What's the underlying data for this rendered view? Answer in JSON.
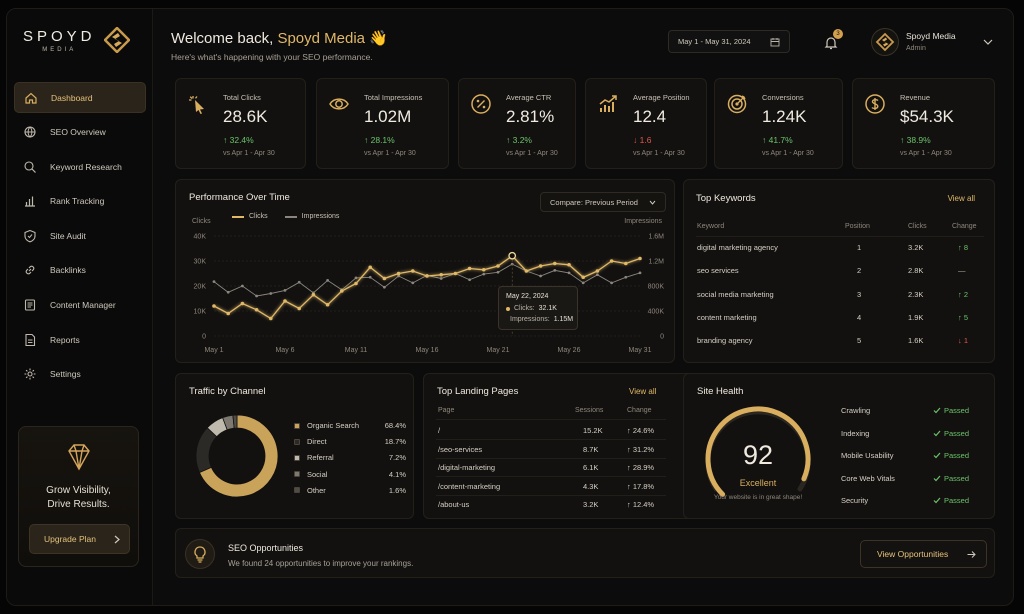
{
  "brand": {
    "name": "SPOYD",
    "sub": "MEDIA"
  },
  "nav": [
    {
      "label": "Dashboard",
      "icon": "home-icon",
      "active": true
    },
    {
      "label": "SEO Overview",
      "icon": "globe-icon"
    },
    {
      "label": "Keyword Research",
      "icon": "search-icon"
    },
    {
      "label": "Rank Tracking",
      "icon": "bar-chart-icon"
    },
    {
      "label": "Site Audit",
      "icon": "shield-icon"
    },
    {
      "label": "Backlinks",
      "icon": "link-icon"
    },
    {
      "label": "Content Manager",
      "icon": "document-icon"
    },
    {
      "label": "Reports",
      "icon": "report-icon"
    },
    {
      "label": "Settings",
      "icon": "gear-icon"
    }
  ],
  "promo": {
    "line1": "Grow Visibility,",
    "line2": "Drive Results.",
    "button": "Upgrade Plan"
  },
  "header": {
    "welcome": "Welcome back,",
    "brand_name": "Spoyd Media",
    "wave": "👋",
    "subtitle": "Here's what's happening with your SEO performance.",
    "date_range": "May 1 - May 31, 2024",
    "notifications": "3",
    "user_name": "Spoyd Media",
    "user_role": "Admin"
  },
  "kpis": [
    {
      "label": "Total Clicks",
      "value": "28.6K",
      "delta": "↑ 32.4%",
      "dir": "up",
      "vs": "vs Apr 1 - Apr 30",
      "icon": "cursor-click-icon"
    },
    {
      "label": "Total Impressions",
      "value": "1.02M",
      "delta": "↑ 28.1%",
      "dir": "up",
      "vs": "vs Apr 1 - Apr 30",
      "icon": "eye-icon"
    },
    {
      "label": "Average CTR",
      "value": "2.81%",
      "delta": "↑ 3.2%",
      "dir": "up",
      "vs": "vs Apr 1 - Apr 30",
      "icon": "percent-icon"
    },
    {
      "label": "Average Position",
      "value": "12.4",
      "delta": "↓ 1.6",
      "dir": "down",
      "vs": "vs Apr 1 - Apr 30",
      "icon": "trend-bars-icon"
    },
    {
      "label": "Conversions",
      "value": "1.24K",
      "delta": "↑ 41.7%",
      "dir": "up",
      "vs": "vs Apr 1 - Apr 30",
      "icon": "target-icon"
    },
    {
      "label": "Revenue",
      "value": "$54.3K",
      "delta": "↑ 38.9%",
      "dir": "up",
      "vs": "vs Apr 1 - Apr 30",
      "icon": "dollar-icon"
    }
  ],
  "performance": {
    "title": "Performance Over Time",
    "compare": "Compare: Previous Period",
    "left_axis": "Clicks",
    "right_axis": "Impressions",
    "tooltip": {
      "date": "May 22, 2024",
      "clicks_label": "Clicks:",
      "clicks_value": "32.1K",
      "impr_label": "Impressions:",
      "impr_value": "1.15M"
    }
  },
  "chart_data": {
    "type": "line",
    "x": [
      "May 1",
      "May 2",
      "May 3",
      "May 4",
      "May 5",
      "May 6",
      "May 7",
      "May 8",
      "May 9",
      "May 10",
      "May 11",
      "May 12",
      "May 13",
      "May 14",
      "May 15",
      "May 16",
      "May 17",
      "May 18",
      "May 19",
      "May 20",
      "May 21",
      "May 22",
      "May 23",
      "May 24",
      "May 25",
      "May 26",
      "May 27",
      "May 28",
      "May 29",
      "May 30",
      "May 31"
    ],
    "xticks": [
      "May 1",
      "May 6",
      "May 11",
      "May 16",
      "May 21",
      "May 26",
      "May 31"
    ],
    "yticks_left": [
      "0",
      "10K",
      "20K",
      "30K",
      "40K"
    ],
    "yticks_right": [
      "0",
      "400K",
      "800K",
      "1.2M",
      "1.6M"
    ],
    "ylim_left": [
      0,
      40000
    ],
    "ylim_right": [
      0,
      1600000
    ],
    "series": [
      {
        "name": "Clicks",
        "axis": "left",
        "color": "#e0b866",
        "values": [
          12000,
          9000,
          13000,
          10500,
          7000,
          14000,
          11000,
          16500,
          12500,
          18000,
          21000,
          27500,
          23000,
          25000,
          26000,
          24000,
          24500,
          25000,
          27000,
          26500,
          28000,
          32100,
          26000,
          28000,
          29000,
          28500,
          23500,
          26000,
          30000,
          29000,
          31000
        ]
      },
      {
        "name": "Impressions",
        "axis": "right",
        "color": "#8a857d",
        "values": [
          870000,
          700000,
          800000,
          640000,
          680000,
          730000,
          860000,
          690000,
          890000,
          740000,
          930000,
          940000,
          780000,
          960000,
          850000,
          970000,
          920000,
          1000000,
          900000,
          990000,
          1020000,
          1150000,
          1040000,
          960000,
          1050000,
          1010000,
          850000,
          980000,
          850000,
          940000,
          1010000
        ]
      }
    ],
    "grid": true,
    "legend": "top-left"
  },
  "keywords": {
    "title": "Top Keywords",
    "view_all": "View all",
    "headers": [
      "Keyword",
      "Position",
      "Clicks",
      "Change"
    ],
    "rows": [
      {
        "k": "digital marketing agency",
        "p": "1",
        "c": "3.2K",
        "ch": "↑ 8",
        "dir": "up"
      },
      {
        "k": "seo services",
        "p": "2",
        "c": "2.8K",
        "ch": "—",
        "dir": "flat"
      },
      {
        "k": "social media marketing",
        "p": "3",
        "c": "2.3K",
        "ch": "↑ 2",
        "dir": "up"
      },
      {
        "k": "content marketing",
        "p": "4",
        "c": "1.9K",
        "ch": "↑ 5",
        "dir": "up"
      },
      {
        "k": "branding agency",
        "p": "5",
        "c": "1.6K",
        "ch": "↓ 1",
        "dir": "down"
      }
    ]
  },
  "channels": {
    "title": "Traffic by Channel",
    "items": [
      {
        "name": "Organic Search",
        "pct": "68.4%",
        "value": 68.4,
        "color": "#c9a35a"
      },
      {
        "name": "Direct",
        "pct": "18.7%",
        "value": 18.7,
        "color": "#2c2a27"
      },
      {
        "name": "Referral",
        "pct": "7.2%",
        "value": 7.2,
        "color": "#bfb9ae"
      },
      {
        "name": "Social",
        "pct": "4.1%",
        "value": 4.1,
        "color": "#7d7870"
      },
      {
        "name": "Other",
        "pct": "1.6%",
        "value": 1.6,
        "color": "#4f4b45"
      }
    ]
  },
  "landing": {
    "title": "Top Landing Pages",
    "view_all": "View all",
    "headers": [
      "Page",
      "Sessions",
      "Change"
    ],
    "rows": [
      {
        "p": "/",
        "s": "15.2K",
        "ch": "↑ 24.6%"
      },
      {
        "p": "/seo-services",
        "s": "8.7K",
        "ch": "↑ 31.2%"
      },
      {
        "p": "/digital-marketing",
        "s": "6.1K",
        "ch": "↑ 28.9%"
      },
      {
        "p": "/content-marketing",
        "s": "4.3K",
        "ch": "↑ 17.8%"
      },
      {
        "p": "/about-us",
        "s": "3.2K",
        "ch": "↑ 12.4%"
      }
    ]
  },
  "health": {
    "title": "Site Health",
    "score": "92",
    "score_value": 92,
    "rating": "Excellent",
    "note": "Your website is in great shape!",
    "checks": [
      {
        "name": "Crawling",
        "status": "Passed"
      },
      {
        "name": "Indexing",
        "status": "Passed"
      },
      {
        "name": "Mobile Usability",
        "status": "Passed"
      },
      {
        "name": "Core Web Vitals",
        "status": "Passed"
      },
      {
        "name": "Security",
        "status": "Passed"
      }
    ]
  },
  "opps": {
    "title": "SEO Opportunities",
    "text": "We found 24 opportunities to improve your rankings.",
    "button": "View Opportunities"
  }
}
